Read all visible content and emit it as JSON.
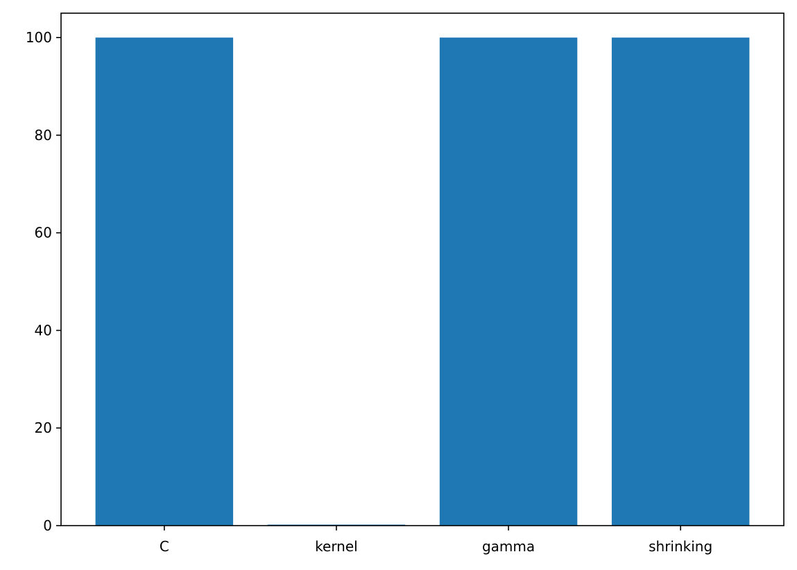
{
  "chart_data": {
    "type": "bar",
    "categories": [
      "C",
      "kernel",
      "gamma",
      "shrinking"
    ],
    "values": [
      100,
      0.2,
      100,
      100
    ],
    "ylim": [
      0,
      105
    ],
    "yticks": [
      0,
      20,
      40,
      60,
      80,
      100
    ],
    "ytick_labels": [
      "0",
      "20",
      "40",
      "60",
      "80",
      "100"
    ],
    "bar_color": "#1f77b4",
    "grid": false,
    "legend": "none",
    "title": "",
    "xlabel": "",
    "ylabel": ""
  }
}
